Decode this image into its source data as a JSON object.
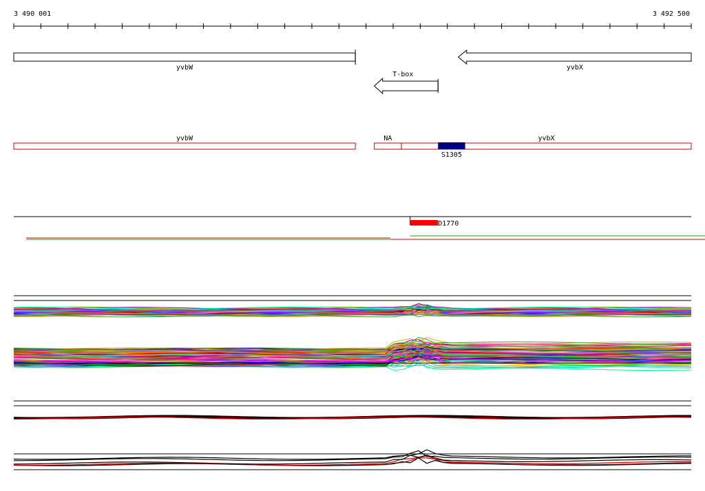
{
  "coords": {
    "start_label": "3 490 001",
    "end_label": "3 492 500",
    "start": 3490001,
    "end": 3492500
  },
  "colors": {
    "gene_outline": "#000000",
    "transcript_outline": "#cc0000",
    "segment_fill": "#000080",
    "probe_fill": "#ff0000",
    "ref_line_green": "#00aa00",
    "ref_line_red": "#cc0000"
  },
  "genes": [
    {
      "label": "yvbW",
      "start": 3490001,
      "end": 3491261,
      "strand": "+"
    },
    {
      "label": "yvbX",
      "start": 3491641,
      "end": 3492500,
      "strand": "-"
    },
    {
      "label": "T-box",
      "start": 3491331,
      "end": 3491566,
      "strand": "-"
    }
  ],
  "transcripts": [
    {
      "label": "yvbW",
      "start": 3490001,
      "end": 3491261
    },
    {
      "label": "NA",
      "start": 3491331,
      "end": 3491431
    },
    {
      "label": "yvbX",
      "start": 3491431,
      "end": 3492500
    }
  ],
  "segment": {
    "label": "S1305",
    "start": 3491566,
    "end": 3491666,
    "color": "#000080"
  },
  "probe": {
    "label": "D1770",
    "start": 3491463,
    "end": 3491566,
    "color": "#ff0000"
  },
  "profiles": {
    "palette": [
      "#000000",
      "#ff0000",
      "#0000ff",
      "#00cc00",
      "#ff00ff",
      "#00cccc",
      "#ff9900",
      "#9900cc",
      "#999900",
      "#cc6699",
      "#66cc00",
      "#3366ff",
      "#cc3300",
      "#669999",
      "#ffcc00",
      "#993366",
      "#00ff99",
      "#6600ff",
      "#ff6666",
      "#339933"
    ]
  }
}
